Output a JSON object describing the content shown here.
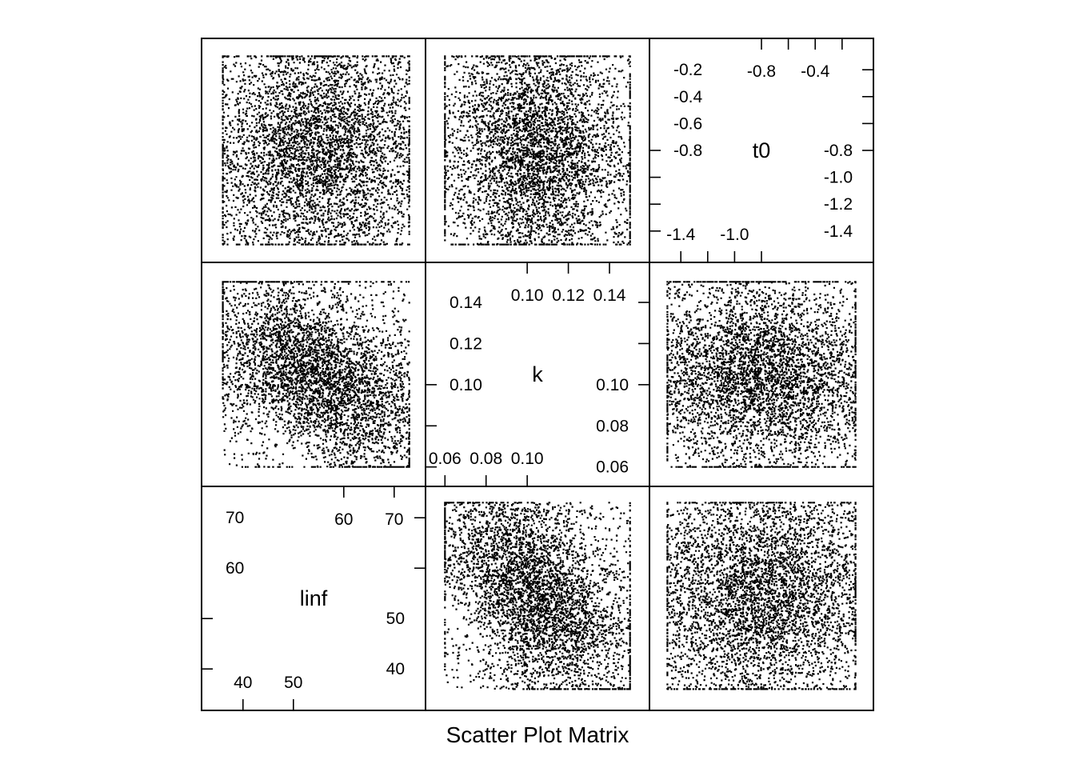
{
  "chart_data": {
    "type": "scatter",
    "title": "",
    "xlabel": "Scatter Plot Matrix",
    "variables": [
      {
        "name": "linf",
        "range": [
          34,
          74
        ],
        "ticks_lower": [
          40,
          50
        ],
        "ticks_upper": [
          60,
          70
        ],
        "ticks_lower_labels": [
          "40",
          "50"
        ],
        "ticks_upper_labels": [
          "60",
          "70"
        ]
      },
      {
        "name": "k",
        "range": [
          0.056,
          0.154
        ],
        "ticks_lower": [
          0.06,
          0.08,
          0.1
        ],
        "ticks_upper": [
          0.1,
          0.12,
          0.14
        ],
        "ticks_lower_labels": [
          "0.06",
          "0.08",
          "0.10"
        ],
        "ticks_upper_labels": [
          "0.10",
          "0.12",
          "0.14"
        ]
      },
      {
        "name": "t0",
        "range": [
          -1.55,
          -0.05
        ],
        "ticks_lower": [
          -1.4,
          -1.2,
          -1.0,
          -0.8
        ],
        "ticks_upper": [
          -0.8,
          -0.6,
          -0.4,
          -0.2
        ],
        "ticks_lower_labels": [
          "-1.4",
          "-1.2",
          "-1.0",
          "-0.8"
        ],
        "ticks_upper_labels": [
          "-0.8",
          "-0.6",
          "-0.4",
          "-0.2"
        ]
      }
    ],
    "sample": {
      "n_points": 4500,
      "linf_range": [
        36,
        73
      ],
      "k_range": [
        0.06,
        0.15
      ],
      "t0_range": [
        -1.5,
        -0.1
      ],
      "correlation_linf_k": -0.6,
      "correlation_linf_t0": 0.0,
      "correlation_k_t0": 0.0
    },
    "grid": false,
    "legend": "none"
  }
}
